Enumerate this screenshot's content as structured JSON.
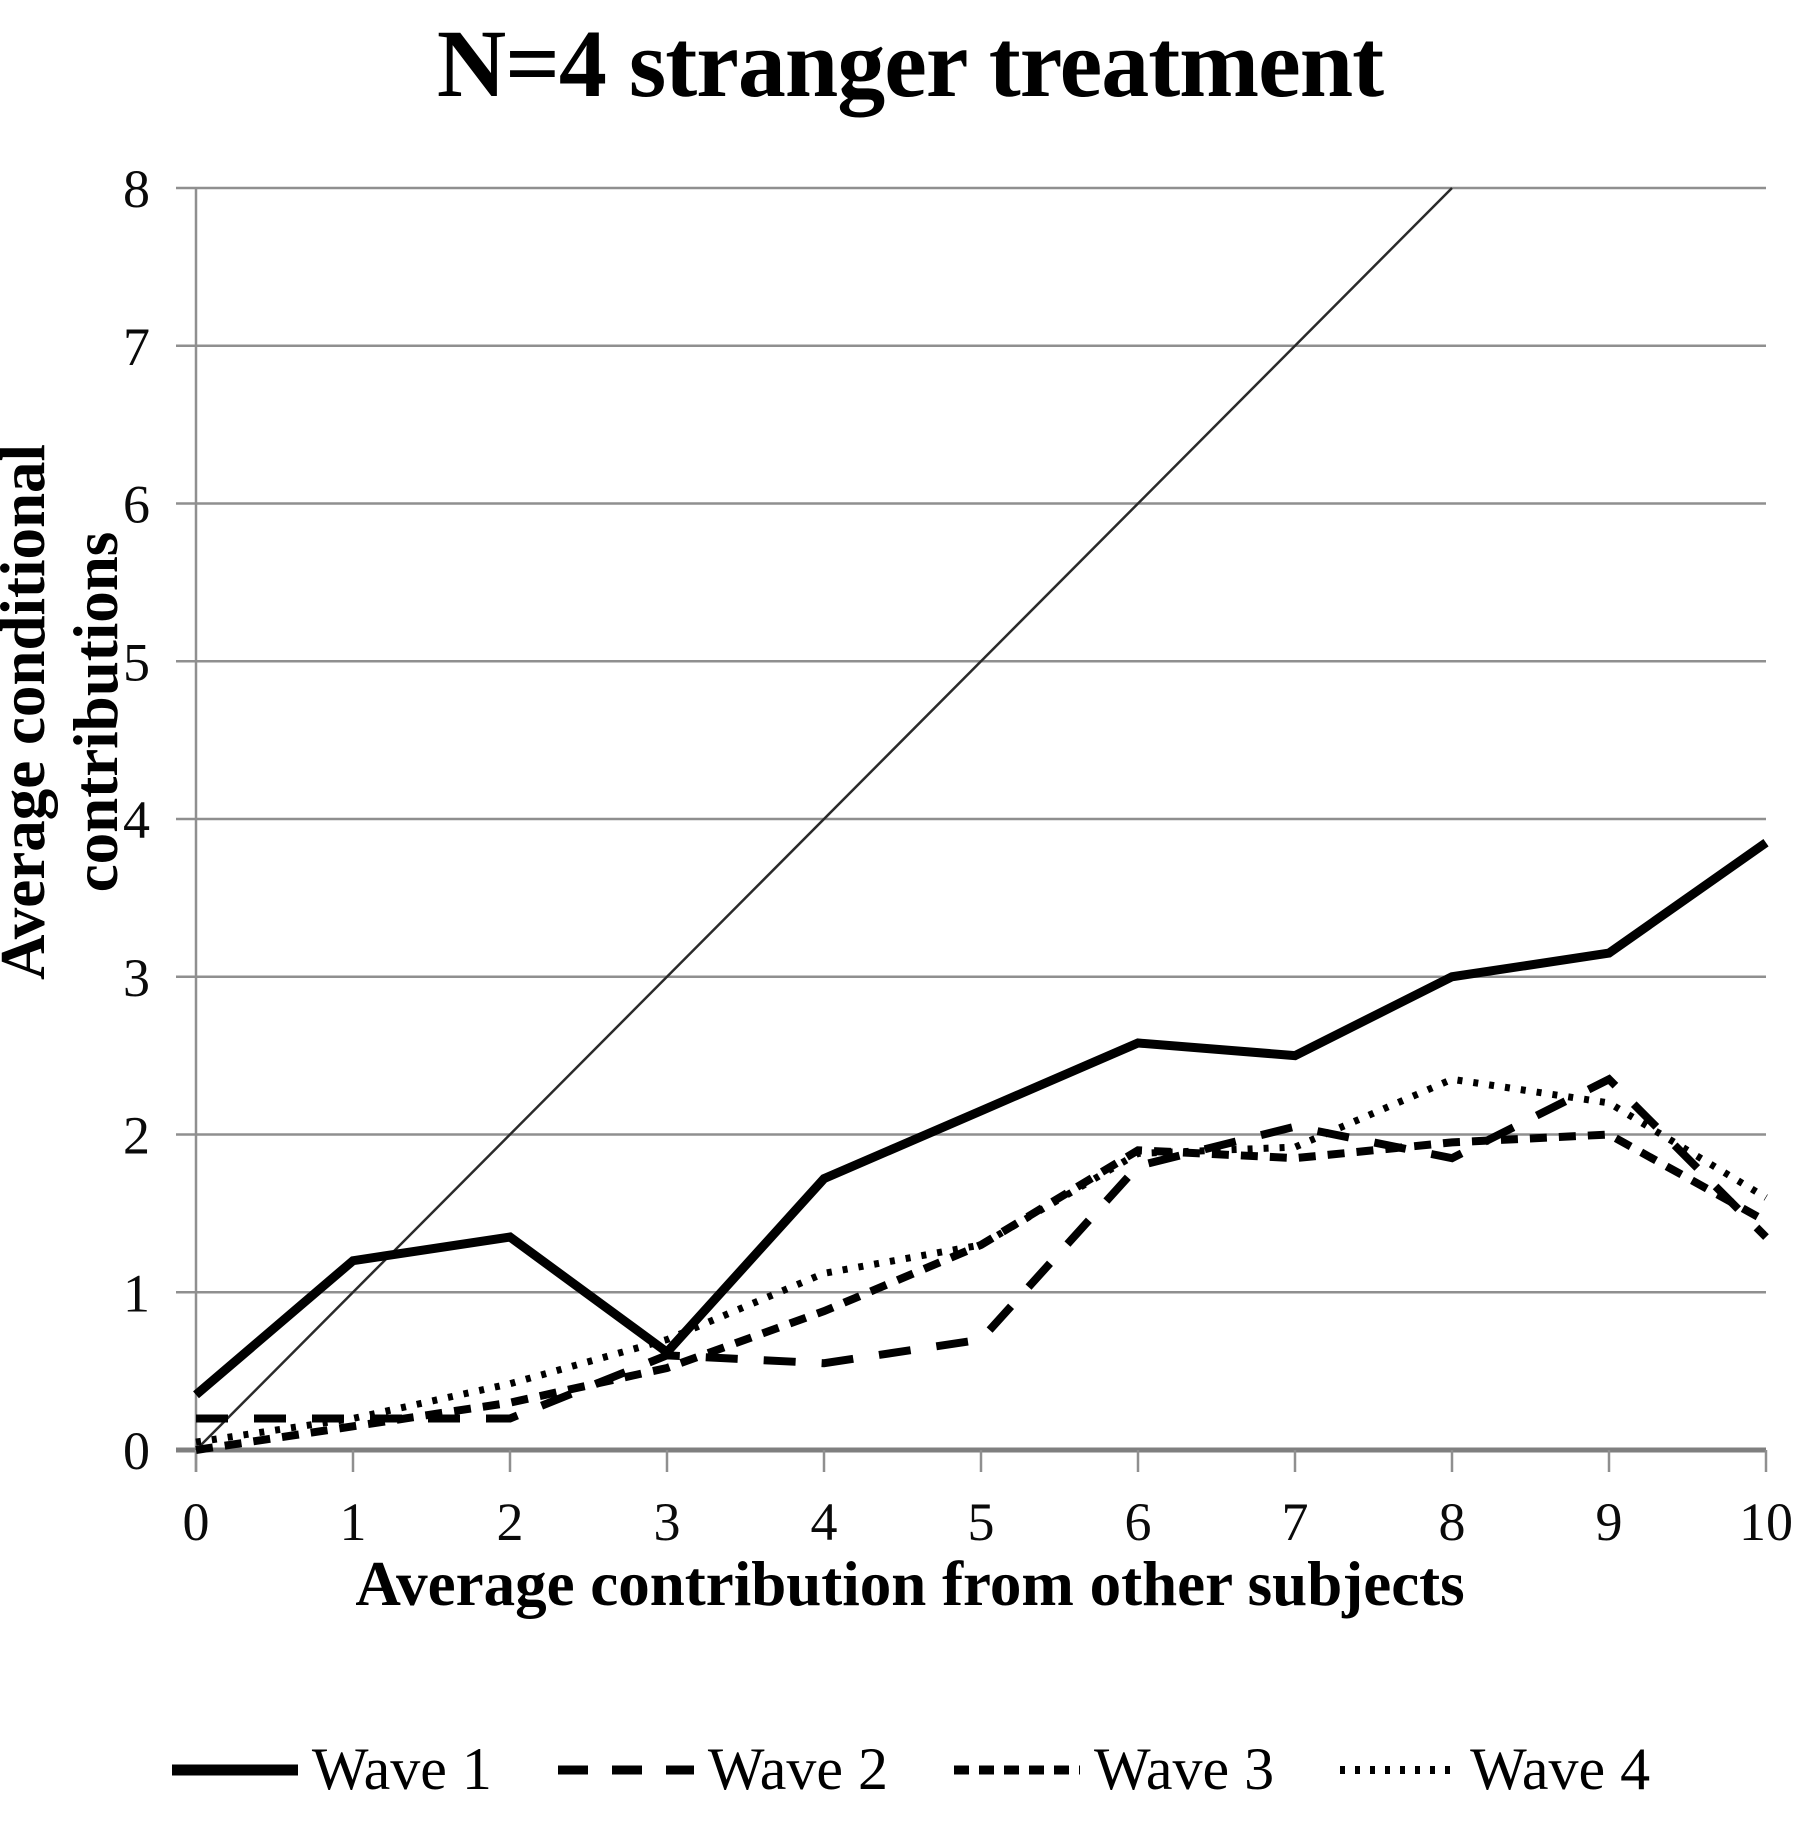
{
  "title": "N=4 stranger treatment",
  "chart_data": {
    "type": "line",
    "title": "N=4 stranger treatment",
    "xlabel": "Average contribution from other subjects",
    "ylabel": "Average conditional contributions",
    "xlim": [
      0,
      10
    ],
    "ylim": [
      0,
      8
    ],
    "xticks": [
      0,
      1,
      2,
      3,
      4,
      5,
      6,
      7,
      8,
      9,
      10
    ],
    "yticks": [
      0,
      1,
      2,
      3,
      4,
      5,
      6,
      7,
      8
    ],
    "grid": "horizontal",
    "legend_position": "bottom",
    "x": [
      0,
      1,
      2,
      3,
      4,
      5,
      6,
      7,
      8,
      9,
      10
    ],
    "reference_line": {
      "name": "45-degree diagonal",
      "from": [
        0,
        0
      ],
      "to": [
        8,
        8
      ],
      "style": "thin-solid"
    },
    "series": [
      {
        "name": "Wave 1",
        "style": "solid",
        "values": [
          0.35,
          1.2,
          1.35,
          0.62,
          1.72,
          2.15,
          2.58,
          2.5,
          3.0,
          3.15,
          3.85
        ]
      },
      {
        "name": "Wave 2",
        "style": "long-dash",
        "values": [
          0.2,
          0.2,
          0.2,
          0.6,
          0.55,
          0.7,
          1.8,
          2.05,
          1.85,
          2.35,
          1.35
        ]
      },
      {
        "name": "Wave 3",
        "style": "short-dash",
        "values": [
          0.0,
          0.15,
          0.3,
          0.52,
          0.88,
          1.3,
          1.9,
          1.85,
          1.95,
          2.0,
          1.45
        ]
      },
      {
        "name": "Wave 4",
        "style": "dotted",
        "values": [
          0.05,
          0.2,
          0.42,
          0.7,
          1.12,
          1.3,
          1.88,
          1.92,
          2.35,
          2.2,
          1.6
        ]
      }
    ],
    "colors": {
      "ink": "#000000",
      "grid": "#8f8f8f"
    }
  }
}
